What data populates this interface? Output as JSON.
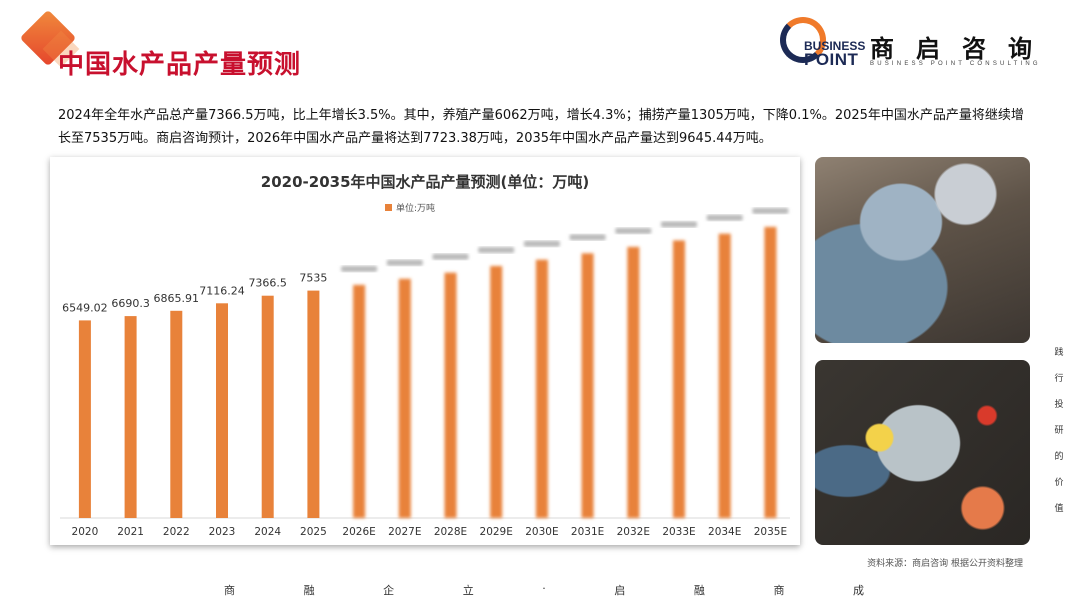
{
  "header": {
    "title": "中国水产品产量预测"
  },
  "logo": {
    "en_line1": "BUSINESS",
    "en_line2": "POINT",
    "cn": "商启咨询",
    "sub": "BUSINESS POINT CONSULTING"
  },
  "intro": "2024年全年水产品总产量7366.5万吨，比上年增长3.5%。其中，养殖产量6062万吨，增长4.3%；捕捞产量1305万吨，下降0.1%。2025年中国水产品产量将继续增长至7535万吨。商启咨询预计，2026年中国水产品产量将达到7723.38万吨，2035年中国水产品产量达到9645.44万吨。",
  "chart_data": {
    "type": "bar",
    "title": "2020-2035年中国水产品产量预测(单位：万吨)",
    "legend": "单位:万吨",
    "legend_position": "top-center",
    "categories": [
      "2020",
      "2021",
      "2022",
      "2023",
      "2024",
      "2025",
      "2026E",
      "2027E",
      "2028E",
      "2029E",
      "2030E",
      "2031E",
      "2032E",
      "2033E",
      "2034E",
      "2035E"
    ],
    "values": [
      6549.02,
      6690.3,
      6865.91,
      7116.24,
      7366.5,
      7535,
      7723.38,
      7925,
      8130,
      8350,
      8560,
      8770,
      8985,
      9200,
      9420,
      9645.44
    ],
    "labels": [
      "6549.02",
      "6690.3",
      "6865.91",
      "7116.24",
      "7366.5",
      "7535",
      "",
      "",
      "",
      "",
      "",
      "",
      "",
      "",
      "",
      ""
    ],
    "blurred_from_index": 6,
    "ylim": [
      0,
      11300
    ],
    "bar_color": "#e8823a"
  },
  "source": "资料来源：商启咨询 根据公开资料整理",
  "side_slogan": [
    "践",
    "行",
    "投",
    "研",
    "的",
    "价",
    "值"
  ],
  "footer": [
    "商",
    "融",
    "企",
    "立",
    "·",
    "启",
    "融",
    "商",
    "成"
  ]
}
